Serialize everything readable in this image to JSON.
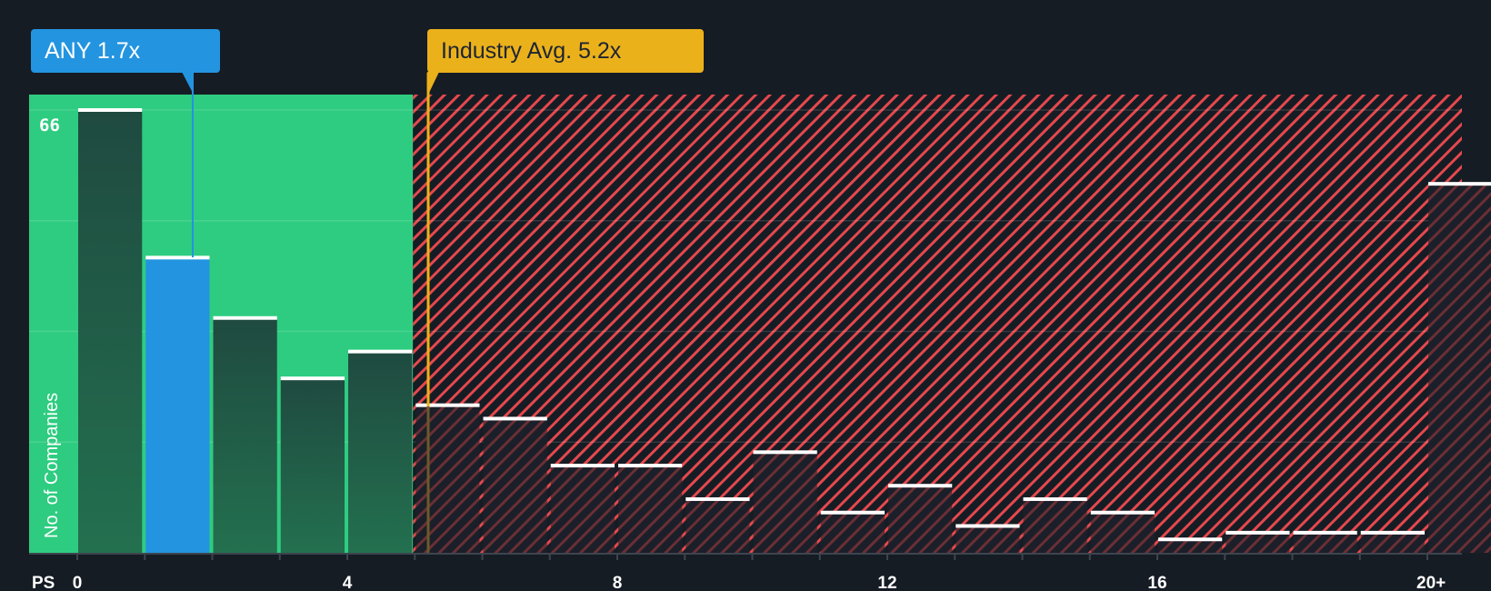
{
  "chart_data": {
    "type": "bar",
    "title": "",
    "xlabel": "PS",
    "ylabel": "No. of Companies",
    "x_tick_labels": [
      "0",
      "4",
      "8",
      "12",
      "16",
      "20+"
    ],
    "x_tick_values": [
      0,
      4,
      8,
      12,
      16,
      20
    ],
    "y_tick_labels": [
      "66"
    ],
    "ylim": [
      0,
      66
    ],
    "grid": true,
    "bins": [
      "0-1",
      "1-2",
      "2-3",
      "3-4",
      "4-5",
      "5-6",
      "6-7",
      "7-8",
      "8-9",
      "9-10",
      "10-11",
      "11-12",
      "12-13",
      "13-14",
      "14-15",
      "15-16",
      "16-17",
      "17-18",
      "18-19",
      "19-20",
      "20+"
    ],
    "values": [
      66,
      44,
      35,
      26,
      30,
      22,
      20,
      13,
      13,
      8,
      15,
      6,
      10,
      4,
      8,
      6,
      2,
      3,
      3,
      3,
      55
    ],
    "highlight_bin_index": 1,
    "markers": [
      {
        "name": "company",
        "label": "ANY 1.7x",
        "value": 1.7
      },
      {
        "name": "industry_average",
        "label": "Industry Avg. 5.2x",
        "value": 5.2
      }
    ],
    "zones": [
      {
        "name": "below_industry",
        "from": 0,
        "to": 5,
        "style": "green"
      },
      {
        "name": "above_industry",
        "from": 5,
        "to": 21,
        "style": "red-hatched"
      }
    ]
  },
  "labels": {
    "company_callout": "ANY 1.7x",
    "industry_callout": "Industry Avg. 5.2x",
    "y_axis_title": "No. of Companies",
    "y_top_tick": "66",
    "x_axis_prefix": "PS"
  },
  "colors": {
    "background": "#161c24",
    "green_zone": "#2ecc80",
    "bar_dark_green_top": "#1f4a40",
    "bar_dark_green_bottom": "#23704f",
    "company_bar": "#2394e0",
    "industry_line": "#ebb11b",
    "hatch": "#e5484d",
    "bar_cap": "#ffffff",
    "axis": "#3d444e"
  }
}
